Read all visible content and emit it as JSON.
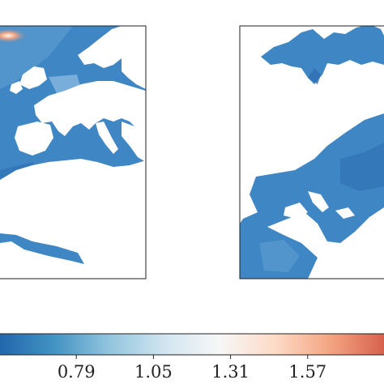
{
  "colors": {
    "background": "#ffffff",
    "ocean_mid": "#3f86c4",
    "ocean_dark": "#2f6fb4",
    "ocean_light": "#8ab8e0",
    "hotspot": "#f4a582",
    "frame": "#222222"
  },
  "chart_data": {
    "type": "heatmap",
    "title": "",
    "panels": [
      {
        "name": "",
        "xlabel": "",
        "ylabel": ""
      },
      {
        "name": "",
        "xlabel": "",
        "ylabel": ""
      }
    ],
    "colorbar": {
      "orientation": "horizontal",
      "colormap": "RdBu_r",
      "range": [
        0.53,
        1.83
      ],
      "stops": [
        "#2166ac",
        "#4393c3",
        "#92c5de",
        "#d1e5f0",
        "#f7f7f7",
        "#fddbc7",
        "#f4a582",
        "#d6604d"
      ],
      "ticks": [
        0.79,
        1.05,
        1.31,
        1.57
      ],
      "tick_labels": [
        "0.79",
        "1.05",
        "1.31",
        "1.57"
      ]
    }
  }
}
